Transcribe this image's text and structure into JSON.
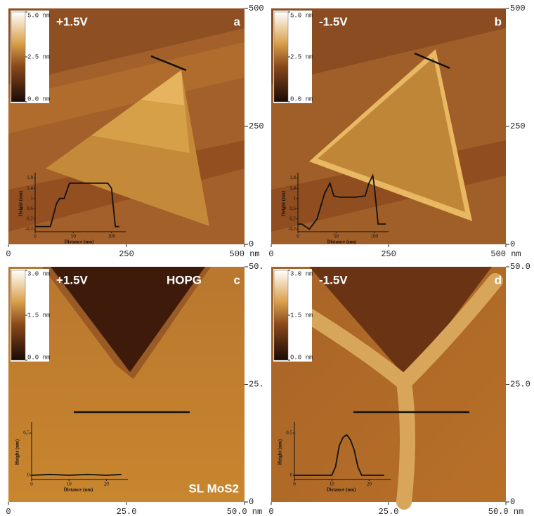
{
  "panels": [
    {
      "label": "a",
      "bias": "+1.5V",
      "colorbar": {
        "lim": [
          0,
          5
        ],
        "ticks": [
          {
            "value": 5,
            "label": "5.0 nm"
          },
          {
            "value": 2.5,
            "label": "2.5 nm"
          },
          {
            "value": 0,
            "label": "0.0 nm"
          }
        ]
      },
      "lim": [
        0,
        500
      ],
      "right_ticks": [
        500,
        250,
        0
      ],
      "bottom_ticks": [
        0,
        250,
        {
          "value": 500,
          "label": "500 nm"
        }
      ],
      "inset": {
        "ylabel": "Height (nm)",
        "xlabel": "Distance (nm)",
        "xlim": [
          0,
          115
        ],
        "ylim": [
          -0.3,
          1.9
        ],
        "xticks": [
          0,
          50,
          100
        ],
        "yticks": [
          {
            "value": 1.8,
            "label": "1,8"
          },
          {
            "value": 1.4,
            "label": "1,4"
          },
          1,
          {
            "value": 0.6,
            "label": "0,6"
          },
          {
            "value": 0.2,
            "label": "0,2"
          },
          {
            "value": -0.2,
            "label": "-0,2"
          }
        ],
        "x": [
          0,
          20,
          28,
          32,
          38,
          45,
          60,
          80,
          95,
          100,
          105,
          110
        ],
        "y": [
          -0.1,
          -0.1,
          0.8,
          1.0,
          1.0,
          1.6,
          1.6,
          1.6,
          1.6,
          1.4,
          -0.1,
          -0.1
        ]
      }
    },
    {
      "label": "b",
      "bias": "-1.5V",
      "colorbar": {
        "lim": [
          0,
          5
        ],
        "ticks": [
          {
            "value": 5,
            "label": "5.0 nm"
          },
          {
            "value": 2.5,
            "label": "2.5 nm"
          },
          {
            "value": 0,
            "label": "0.0 nm"
          }
        ]
      },
      "lim": [
        0,
        500
      ],
      "right_ticks": [
        500,
        250,
        0
      ],
      "bottom_ticks": [
        0,
        250,
        {
          "value": 500,
          "label": "500 nm"
        }
      ],
      "inset": {
        "ylabel": "Height (nm)",
        "xlabel": "Distance (nm)",
        "xlim": [
          0,
          115
        ],
        "ylim": [
          -0.3,
          1.9
        ],
        "xticks": [
          0,
          50,
          100
        ],
        "yticks": [
          {
            "value": 1.8,
            "label": "1,8"
          },
          {
            "value": 1.4,
            "label": "1,4"
          },
          1,
          {
            "value": 0.6,
            "label": "0,6"
          },
          {
            "value": 0.2,
            "label": "0,2"
          },
          {
            "value": -0.2,
            "label": "-0,2"
          }
        ],
        "x": [
          0,
          5,
          10,
          15,
          25,
          35,
          42,
          47,
          55,
          75,
          88,
          93,
          98,
          100,
          105,
          115
        ],
        "y": [
          0,
          0,
          -0.1,
          -0.2,
          0.2,
          1.2,
          1.6,
          1.1,
          1.05,
          1.05,
          1.1,
          1.6,
          1.9,
          1.5,
          0,
          0
        ]
      }
    },
    {
      "label": "c",
      "bias": "+1.5V",
      "top_text": "HOPG",
      "bottom_text": "SL MoS2",
      "colorbar": {
        "lim": [
          0,
          3
        ],
        "ticks": [
          {
            "value": 3,
            "label": "3.0 nm"
          },
          {
            "value": 1.5,
            "label": "1.5 nm"
          },
          {
            "value": 0,
            "label": "0.0 nm"
          }
        ]
      },
      "lim": [
        0,
        50
      ],
      "right_ticks": [
        {
          "value": 50,
          "label": "50."
        },
        {
          "value": 25,
          "label": "25."
        },
        0
      ],
      "bottom_ticks": [
        0,
        {
          "value": 25,
          "label": "25.0"
        },
        {
          "value": 50,
          "label": "50.0 nm"
        }
      ],
      "inset": {
        "ylabel": "Height (nm)",
        "xlabel": "Distance (nm)",
        "xlim": [
          0,
          25
        ],
        "ylim": [
          -0.05,
          0.6
        ],
        "xticks": [
          0,
          10,
          20
        ],
        "yticks": [
          {
            "value": 0.5,
            "label": "0,5"
          },
          0
        ],
        "x": [
          0,
          5,
          10,
          15,
          20,
          24
        ],
        "y": [
          0,
          0.01,
          0,
          0.01,
          0,
          0.01
        ]
      }
    },
    {
      "label": "d",
      "bias": "-1.5V",
      "colorbar": {
        "lim": [
          0,
          3
        ],
        "ticks": [
          {
            "value": 3,
            "label": "3.0 nm"
          },
          {
            "value": 1.5,
            "label": "1.5 nm"
          },
          {
            "value": 0,
            "label": "0.0 nm"
          }
        ]
      },
      "lim": [
        0,
        50
      ],
      "right_ticks": [
        {
          "value": 50,
          "label": "50.0"
        },
        {
          "value": 25,
          "label": "25.0"
        },
        0
      ],
      "bottom_ticks": [
        0,
        {
          "value": 25,
          "label": "25.0"
        },
        {
          "value": 50,
          "label": "50.0 nm"
        }
      ],
      "inset": {
        "ylabel": "Height (nm)",
        "xlabel": "Distance (nm)",
        "xlim": [
          0,
          25
        ],
        "ylim": [
          -0.05,
          0.6
        ],
        "xticks": [
          0,
          10,
          20
        ],
        "yticks": [
          {
            "value": 0.5,
            "label": "0,5"
          },
          0
        ],
        "x": [
          0,
          5,
          10,
          11,
          12,
          13,
          14,
          15,
          16,
          17,
          18,
          20,
          24
        ],
        "y": [
          0,
          0,
          0,
          0.1,
          0.35,
          0.45,
          0.48,
          0.42,
          0.3,
          0.1,
          0,
          0,
          0
        ]
      }
    }
  ]
}
